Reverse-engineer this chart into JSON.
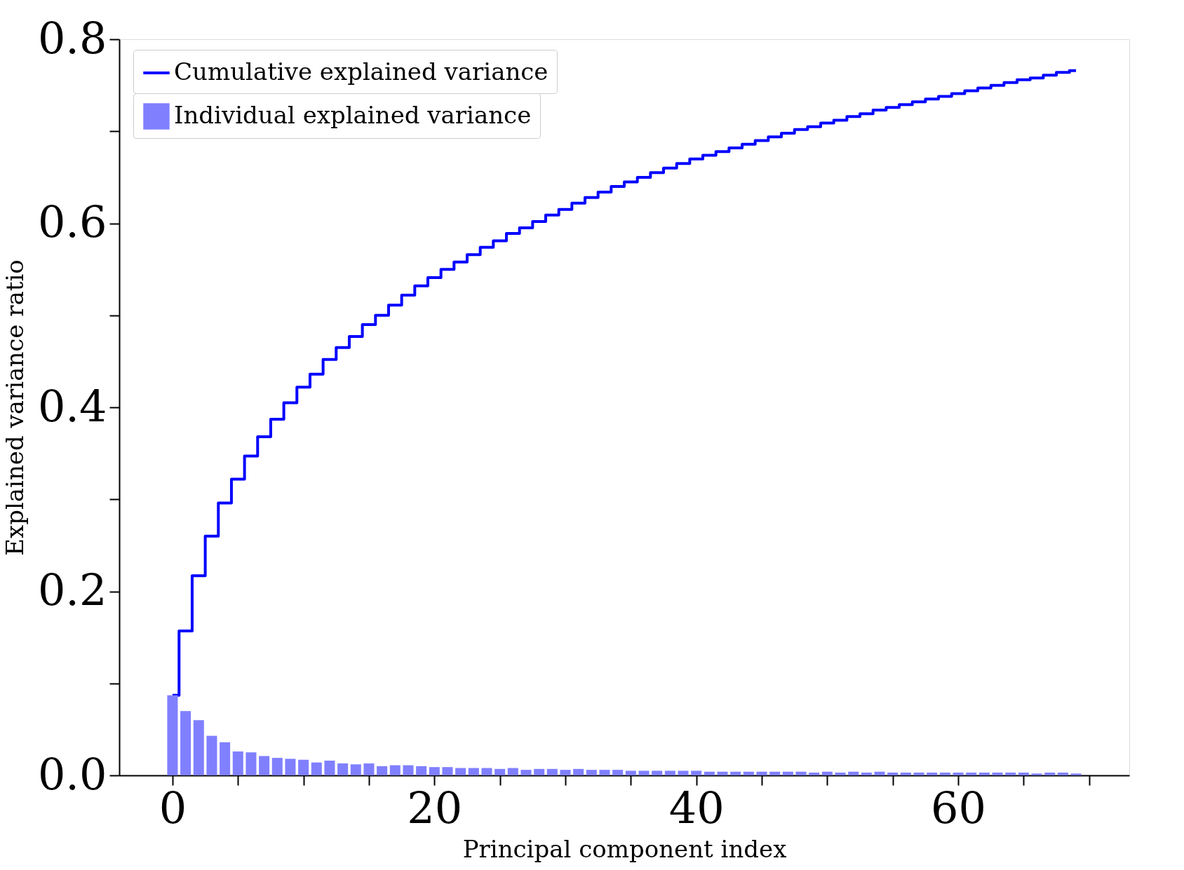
{
  "chart_data": {
    "type": "bar",
    "xlabel": "Principal component index",
    "ylabel": "Explained variance ratio",
    "x": [
      0,
      1,
      2,
      3,
      4,
      5,
      6,
      7,
      8,
      9,
      10,
      11,
      12,
      13,
      14,
      15,
      16,
      17,
      18,
      19,
      20,
      21,
      22,
      23,
      24,
      25,
      26,
      27,
      28,
      29,
      30,
      31,
      32,
      33,
      34,
      35,
      36,
      37,
      38,
      39,
      40,
      41,
      42,
      43,
      44,
      45,
      46,
      47,
      48,
      49,
      50,
      51,
      52,
      53,
      54,
      55,
      56,
      57,
      58,
      59,
      60,
      61,
      62,
      63,
      64,
      65,
      66,
      67,
      68,
      69
    ],
    "series": [
      {
        "name": "Cumulative explained variance",
        "type": "step",
        "color": "#0000ff",
        "values": [
          0.087,
          0.157,
          0.217,
          0.26,
          0.296,
          0.322,
          0.347,
          0.368,
          0.387,
          0.405,
          0.422,
          0.436,
          0.452,
          0.465,
          0.477,
          0.49,
          0.5,
          0.511,
          0.522,
          0.532,
          0.541,
          0.55,
          0.558,
          0.566,
          0.574,
          0.581,
          0.589,
          0.595,
          0.602,
          0.609,
          0.615,
          0.622,
          0.628,
          0.634,
          0.64,
          0.645,
          0.65,
          0.655,
          0.66,
          0.665,
          0.67,
          0.674,
          0.678,
          0.682,
          0.686,
          0.69,
          0.694,
          0.698,
          0.702,
          0.705,
          0.709,
          0.712,
          0.716,
          0.719,
          0.723,
          0.726,
          0.729,
          0.732,
          0.735,
          0.738,
          0.741,
          0.744,
          0.747,
          0.75,
          0.753,
          0.756,
          0.758,
          0.761,
          0.764,
          0.766
        ]
      },
      {
        "name": "Individual explained variance",
        "color": "#8080ff",
        "values": [
          0.087,
          0.07,
          0.06,
          0.043,
          0.036,
          0.026,
          0.025,
          0.021,
          0.019,
          0.018,
          0.017,
          0.014,
          0.016,
          0.013,
          0.012,
          0.013,
          0.01,
          0.011,
          0.011,
          0.01,
          0.009,
          0.009,
          0.008,
          0.008,
          0.008,
          0.007,
          0.008,
          0.006,
          0.007,
          0.007,
          0.006,
          0.007,
          0.006,
          0.006,
          0.006,
          0.005,
          0.005,
          0.005,
          0.005,
          0.005,
          0.005,
          0.004,
          0.004,
          0.004,
          0.004,
          0.004,
          0.004,
          0.004,
          0.004,
          0.003,
          0.004,
          0.003,
          0.004,
          0.003,
          0.004,
          0.003,
          0.003,
          0.003,
          0.003,
          0.003,
          0.003,
          0.003,
          0.003,
          0.003,
          0.003,
          0.003,
          0.002,
          0.003,
          0.003,
          0.002
        ]
      }
    ],
    "xlim": [
      -3.8,
      72.8
    ],
    "ylim": [
      0,
      0.8
    ],
    "xticks": [
      0,
      {
        "value": 5,
        "label": null
      },
      {
        "value": 10,
        "label": null
      },
      {
        "value": 15,
        "label": null
      },
      20,
      {
        "value": 25,
        "label": null
      },
      {
        "value": 30,
        "label": null
      },
      {
        "value": 35,
        "label": null
      },
      40,
      {
        "value": 45,
        "label": null
      },
      {
        "value": 50,
        "label": null
      },
      {
        "value": 55,
        "label": null
      },
      60,
      {
        "value": 65,
        "label": null
      },
      {
        "value": 70,
        "label": null
      }
    ],
    "yticks": [
      {
        "value": 0,
        "label": "0.0"
      },
      {
        "value": 0.1,
        "label": null
      },
      {
        "value": 0.2,
        "label": "0.2"
      },
      {
        "value": 0.3,
        "label": null
      },
      {
        "value": 0.4,
        "label": "0.4"
      },
      {
        "value": 0.5,
        "label": null
      },
      {
        "value": 0.6,
        "label": "0.6"
      },
      {
        "value": 0.7,
        "label": null
      },
      {
        "value": 0.8,
        "label": "0.8"
      }
    ],
    "legend": "top left",
    "grid": false
  }
}
